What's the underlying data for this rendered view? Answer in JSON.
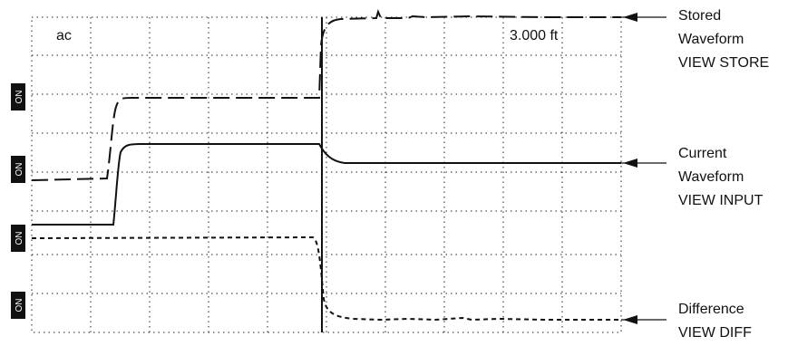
{
  "display": {
    "coupling": "ac",
    "cursor_readout": "3.000 ft"
  },
  "channel_markers": [
    "ON",
    "ON",
    "ON",
    "ON"
  ],
  "waveforms": {
    "stored": {
      "lines": [
        "Stored",
        "Waveform",
        "VIEW STORE"
      ]
    },
    "current": {
      "lines": [
        "Current",
        "Waveform",
        "VIEW INPUT"
      ]
    },
    "difference": {
      "lines": [
        "Difference",
        "VIEW DIFF"
      ]
    }
  }
}
